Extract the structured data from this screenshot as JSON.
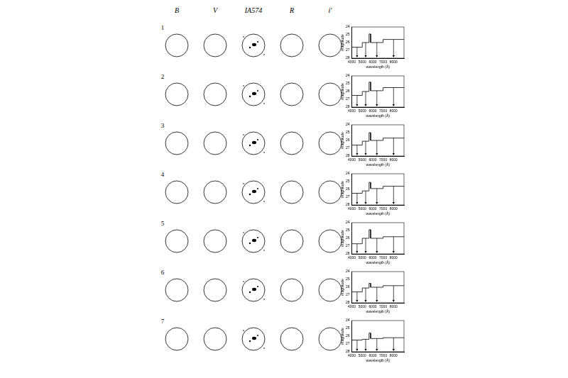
{
  "figure": {
    "columns": [
      "B",
      "V",
      "IA574",
      "R",
      "i′"
    ],
    "rows": [
      "1",
      "2",
      "3",
      "4",
      "5",
      "6",
      "7"
    ]
  },
  "chart_data": [
    {
      "type": "line",
      "x_label": "wavelength (Å)",
      "y_label": "magnitude",
      "xlim": [
        4000,
        9000
      ],
      "xticks": [
        4000,
        5000,
        6000,
        7000,
        8000
      ],
      "ylim": [
        28,
        24
      ],
      "yticks": [
        24,
        25,
        26,
        27,
        28
      ],
      "grid": false,
      "color": "#000000",
      "x_ranges": [
        [
          4000,
          5000
        ],
        [
          5000,
          5650
        ],
        [
          5650,
          5800
        ],
        [
          5800,
          7000
        ],
        [
          7000,
          9000
        ]
      ],
      "values": [
        26.6,
        26.0,
        24.9,
        26.0,
        25.6
      ],
      "upper_limits": [
        true,
        true,
        false,
        true,
        true
      ]
    },
    {
      "type": "line",
      "x_label": "wavelength (Å)",
      "y_label": "magnitude",
      "xlim": [
        4000,
        9000
      ],
      "xticks": [
        4000,
        5000,
        6000,
        7000,
        8000
      ],
      "ylim": [
        28,
        24
      ],
      "yticks": [
        24,
        25,
        26,
        27,
        28
      ],
      "grid": false,
      "color": "#000000",
      "x_ranges": [
        [
          4000,
          5000
        ],
        [
          5000,
          5650
        ],
        [
          5650,
          5800
        ],
        [
          5800,
          7000
        ],
        [
          7000,
          9000
        ]
      ],
      "values": [
        26.5,
        26.0,
        24.8,
        25.9,
        25.5
      ],
      "upper_limits": [
        true,
        true,
        false,
        true,
        true
      ]
    },
    {
      "type": "line",
      "x_label": "wavelength (Å)",
      "y_label": "magnitude",
      "xlim": [
        4000,
        9000
      ],
      "xticks": [
        4000,
        5000,
        6000,
        7000,
        8000
      ],
      "ylim": [
        28,
        24
      ],
      "yticks": [
        24,
        25,
        26,
        27,
        28
      ],
      "grid": false,
      "color": "#000000",
      "x_ranges": [
        [
          4000,
          5000
        ],
        [
          5000,
          5650
        ],
        [
          5650,
          5800
        ],
        [
          5800,
          7000
        ],
        [
          7000,
          9000
        ]
      ],
      "values": [
        26.6,
        26.1,
        25.0,
        26.0,
        25.7
      ],
      "upper_limits": [
        true,
        true,
        false,
        true,
        true
      ]
    },
    {
      "type": "line",
      "x_label": "wavelength (Å)",
      "y_label": "magnitude",
      "xlim": [
        4000,
        9000
      ],
      "xticks": [
        4000,
        5000,
        6000,
        7000,
        8000
      ],
      "ylim": [
        28,
        24
      ],
      "yticks": [
        24,
        25,
        26,
        27,
        28
      ],
      "grid": false,
      "color": "#000000",
      "x_ranges": [
        [
          4000,
          5000
        ],
        [
          5000,
          5650
        ],
        [
          5650,
          5800
        ],
        [
          5800,
          7000
        ],
        [
          7000,
          9000
        ]
      ],
      "values": [
        26.5,
        26.2,
        25.1,
        25.9,
        25.6
      ],
      "upper_limits": [
        true,
        true,
        false,
        true,
        true
      ]
    },
    {
      "type": "line",
      "x_label": "wavelength (Å)",
      "y_label": "magnitude",
      "xlim": [
        4000,
        9000
      ],
      "xticks": [
        4000,
        5000,
        6000,
        7000,
        8000
      ],
      "ylim": [
        28,
        24
      ],
      "yticks": [
        24,
        25,
        26,
        27,
        28
      ],
      "grid": false,
      "color": "#000000",
      "x_ranges": [
        [
          4000,
          5000
        ],
        [
          5000,
          5650
        ],
        [
          5650,
          5800
        ],
        [
          5800,
          7000
        ],
        [
          7000,
          9000
        ]
      ],
      "values": [
        26.7,
        26.0,
        24.9,
        26.0,
        25.8
      ],
      "upper_limits": [
        true,
        true,
        false,
        true,
        true
      ]
    },
    {
      "type": "line",
      "x_label": "wavelength (Å)",
      "y_label": "magnitude",
      "xlim": [
        4000,
        9000
      ],
      "xticks": [
        4000,
        5000,
        6000,
        7000,
        8000
      ],
      "ylim": [
        28,
        24
      ],
      "yticks": [
        24,
        25,
        26,
        27,
        28
      ],
      "grid": false,
      "color": "#000000",
      "x_ranges": [
        [
          4000,
          5000
        ],
        [
          5000,
          5650
        ],
        [
          5650,
          5800
        ],
        [
          5800,
          7000
        ],
        [
          7000,
          9000
        ]
      ],
      "values": [
        26.6,
        26.1,
        25.5,
        26.0,
        25.8
      ],
      "upper_limits": [
        true,
        true,
        false,
        true,
        true
      ]
    },
    {
      "type": "line",
      "x_label": "wavelength (Å)",
      "y_label": "magnitude",
      "xlim": [
        4000,
        9000
      ],
      "xticks": [
        4000,
        5000,
        6000,
        7000,
        8000
      ],
      "ylim": [
        28,
        24
      ],
      "yticks": [
        24,
        25,
        26,
        27,
        28
      ],
      "grid": false,
      "color": "#000000",
      "x_ranges": [
        [
          4000,
          5000
        ],
        [
          5000,
          5650
        ],
        [
          5650,
          5800
        ],
        [
          5800,
          7000
        ],
        [
          7000,
          9000
        ]
      ],
      "values": [
        26.5,
        26.4,
        25.6,
        26.3,
        26.2
      ],
      "upper_limits": [
        true,
        true,
        false,
        true,
        true
      ]
    }
  ]
}
